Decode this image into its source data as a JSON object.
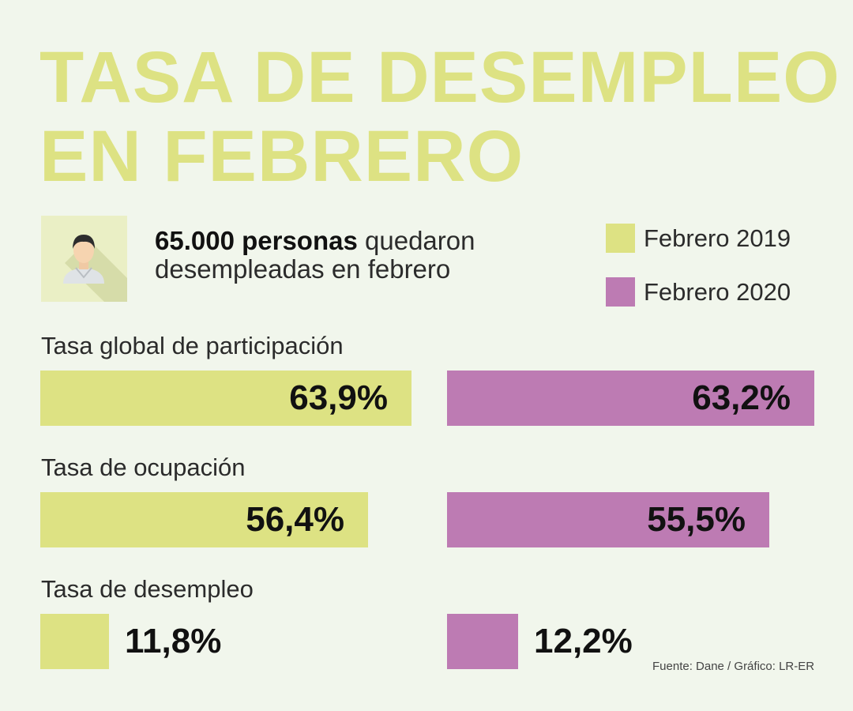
{
  "title": {
    "line1": "TASA DE DESEMPLEO",
    "line2": "EN FEBRERO"
  },
  "headline": {
    "bold": "65.000 personas",
    "rest": " quedaron desempleadas en febrero"
  },
  "icons": {
    "avatar": "person-avatar-icon"
  },
  "colors": {
    "background": "#f1f6ec",
    "title": "#dde283",
    "series_2019": "#dde283",
    "series_2020": "#bd7bb3",
    "avatar_bg": "#eaefc5"
  },
  "chart_data": {
    "type": "bar",
    "title": "TASA DE DESEMPLEO EN FEBRERO",
    "categories": [
      "Tasa global de participación",
      "Tasa de ocupación",
      "Tasa de desempleo"
    ],
    "series": [
      {
        "name": "Febrero 2019",
        "values": [
          63.9,
          56.4,
          11.8
        ],
        "labels": [
          "63,9%",
          "56,4%",
          "11,8%"
        ]
      },
      {
        "name": "Febrero 2020",
        "values": [
          63.2,
          55.5,
          12.2
        ],
        "labels": [
          "63,2%",
          "55,5%",
          "12,2%"
        ]
      }
    ],
    "unit": "%",
    "legend": "top-right"
  },
  "source": "Fuente: Dane / Gráfico: LR-ER"
}
